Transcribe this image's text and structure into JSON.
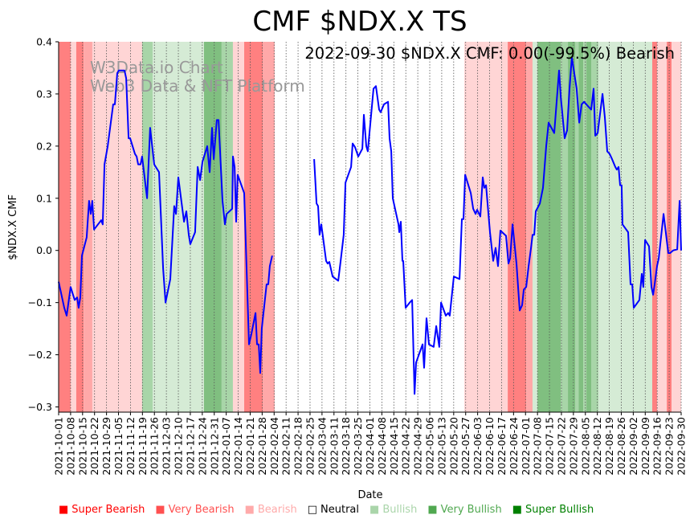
{
  "chart_data": {
    "type": "line",
    "title": "CMF $NDX.X TS",
    "annotation": "2022-09-30 $NDX.X CMF: 0.00(-99.5%) Bearish",
    "watermark": [
      "W3Data.io Chart",
      "Web3 Data & NFT Platform"
    ],
    "xlabel": "Date",
    "ylabel": "$NDX.X CMF",
    "x_start": "2021-10-01",
    "x_unit": "days since 2021-10-01",
    "xlim": [
      0,
      364
    ],
    "ylim": [
      -0.31,
      0.4
    ],
    "yticks": [
      -0.3,
      -0.2,
      -0.1,
      0.0,
      0.1,
      0.2,
      0.3,
      0.4
    ],
    "ytick_labels": [
      "−0.3",
      "−0.2",
      "−0.1",
      "0.0",
      "0.1",
      "0.2",
      "0.3",
      "0.4"
    ],
    "xtick_labels": [
      "2021-10-01",
      "2021-10-08",
      "2021-10-15",
      "2021-10-22",
      "2021-10-29",
      "2021-11-05",
      "2021-11-12",
      "2021-11-19",
      "2021-11-26",
      "2021-12-03",
      "2021-12-10",
      "2021-12-17",
      "2021-12-24",
      "2021-12-31",
      "2022-01-07",
      "2022-01-14",
      "2022-01-21",
      "2022-01-28",
      "2022-02-04",
      "2022-02-11",
      "2022-02-18",
      "2022-02-25",
      "2022-03-04",
      "2022-03-11",
      "2022-03-18",
      "2022-03-25",
      "2022-04-01",
      "2022-04-08",
      "2022-04-15",
      "2022-04-22",
      "2022-04-29",
      "2022-05-06",
      "2022-05-13",
      "2022-05-20",
      "2022-05-27",
      "2022-06-03",
      "2022-06-10",
      "2022-06-17",
      "2022-06-24",
      "2022-07-01",
      "2022-07-08",
      "2022-07-15",
      "2022-07-22",
      "2022-07-29",
      "2022-08-05",
      "2022-08-12",
      "2022-08-19",
      "2022-08-26",
      "2022-09-02",
      "2022-09-09",
      "2022-09-16",
      "2022-09-23",
      "2022-09-30"
    ],
    "grid": "x-dotted",
    "series": [
      {
        "name": "CMF",
        "color": "#0000ff",
        "points": [
          [
            0,
            -0.06
          ],
          [
            3.3,
            -0.11
          ],
          [
            4.7,
            -0.125
          ],
          [
            7,
            -0.07
          ],
          [
            9.4,
            -0.095
          ],
          [
            10.8,
            -0.09
          ],
          [
            11.7,
            -0.11
          ],
          [
            12.7,
            -0.09
          ],
          [
            13.6,
            -0.01
          ],
          [
            16.4,
            0.025
          ],
          [
            17.8,
            0.095
          ],
          [
            18.8,
            0.07
          ],
          [
            19.7,
            0.095
          ],
          [
            20.7,
            0.04
          ],
          [
            24.9,
            0.058
          ],
          [
            25.8,
            0.05
          ],
          [
            26.8,
            0.165
          ],
          [
            28.7,
            0.2
          ],
          [
            31.9,
            0.28
          ],
          [
            32.9,
            0.28
          ],
          [
            34.3,
            0.34
          ],
          [
            35.2,
            0.345
          ],
          [
            38.5,
            0.345
          ],
          [
            39.5,
            0.33
          ],
          [
            40.9,
            0.215
          ],
          [
            41.8,
            0.215
          ],
          [
            44.6,
            0.185
          ],
          [
            45.6,
            0.18
          ],
          [
            46.5,
            0.165
          ],
          [
            47.9,
            0.165
          ],
          [
            48.8,
            0.18
          ],
          [
            51.7,
            0.1
          ],
          [
            53.5,
            0.235
          ],
          [
            55.9,
            0.165
          ],
          [
            58.7,
            0.15
          ],
          [
            61.1,
            -0.035
          ],
          [
            62.5,
            -0.1
          ],
          [
            65.3,
            -0.055
          ],
          [
            67.6,
            0.085
          ],
          [
            68.6,
            0.07
          ],
          [
            70,
            0.14
          ],
          [
            73.3,
            0.055
          ],
          [
            74.7,
            0.075
          ],
          [
            76.1,
            0.03
          ],
          [
            77,
            0.012
          ],
          [
            79.8,
            0.035
          ],
          [
            81.3,
            0.16
          ],
          [
            82.7,
            0.135
          ],
          [
            84.1,
            0.17
          ],
          [
            86.9,
            0.2
          ],
          [
            88.3,
            0.15
          ],
          [
            89.7,
            0.235
          ],
          [
            90.7,
            0.175
          ],
          [
            92.5,
            0.25
          ],
          [
            93.5,
            0.25
          ],
          [
            95.8,
            0.095
          ],
          [
            97.2,
            0.05
          ],
          [
            98.2,
            0.07
          ],
          [
            101.5,
            0.08
          ],
          [
            101.9,
            0.18
          ],
          [
            102.9,
            0.16
          ],
          [
            103.8,
            0.055
          ],
          [
            104.7,
            0.145
          ],
          [
            108.5,
            0.11
          ],
          [
            111.3,
            -0.18
          ],
          [
            112.7,
            -0.16
          ],
          [
            115.1,
            -0.12
          ],
          [
            116,
            -0.18
          ],
          [
            117,
            -0.18
          ],
          [
            117.9,
            -0.235
          ],
          [
            118.8,
            -0.15
          ],
          [
            121.6,
            -0.065
          ],
          [
            122.6,
            -0.065
          ],
          [
            123.5,
            -0.03
          ],
          [
            124.9,
            -0.01
          ],
          null,
          [
            149.4,
            0.175
          ],
          [
            150.8,
            0.09
          ],
          [
            151.7,
            0.085
          ],
          [
            152.6,
            0.03
          ],
          [
            153.6,
            0.05
          ],
          [
            156.4,
            -0.02
          ],
          [
            157.3,
            -0.025
          ],
          [
            158.3,
            -0.022
          ],
          [
            160.2,
            -0.05
          ],
          [
            163.5,
            -0.058
          ],
          [
            164.9,
            -0.02
          ],
          [
            166.7,
            0.03
          ],
          [
            167.7,
            0.13
          ],
          [
            171,
            0.16
          ],
          [
            171.9,
            0.205
          ],
          [
            173.3,
            0.198
          ],
          [
            175.2,
            0.18
          ],
          [
            177.6,
            0.195
          ],
          [
            178.5,
            0.26
          ],
          [
            179.9,
            0.2
          ],
          [
            180.8,
            0.19
          ],
          [
            184.1,
            0.31
          ],
          [
            185.5,
            0.315
          ],
          [
            187.4,
            0.27
          ],
          [
            188.3,
            0.265
          ],
          [
            190.2,
            0.28
          ],
          [
            192.6,
            0.285
          ],
          [
            193.5,
            0.215
          ],
          [
            194.5,
            0.19
          ],
          [
            195.4,
            0.1
          ],
          [
            198.7,
            0.05
          ],
          [
            199.2,
            0.035
          ],
          [
            200.1,
            0.055
          ],
          [
            201,
            -0.02
          ],
          [
            201.5,
            -0.02
          ],
          [
            202.9,
            -0.11
          ],
          [
            205.3,
            -0.1
          ],
          [
            206.7,
            -0.095
          ],
          [
            208.1,
            -0.275
          ],
          [
            209,
            -0.215
          ],
          [
            212.8,
            -0.18
          ],
          [
            213.7,
            -0.225
          ],
          [
            215.1,
            -0.13
          ],
          [
            216.5,
            -0.18
          ],
          [
            219.3,
            -0.185
          ],
          [
            220.8,
            -0.145
          ],
          [
            222.6,
            -0.185
          ],
          [
            223.6,
            -0.1
          ],
          [
            226.4,
            -0.125
          ],
          [
            227.8,
            -0.12
          ],
          [
            228.7,
            -0.125
          ],
          [
            231.1,
            -0.05
          ],
          [
            234.4,
            -0.055
          ],
          [
            235.8,
            0.06
          ],
          [
            236.7,
            0.06
          ],
          [
            237.7,
            0.145
          ],
          [
            241,
            0.11
          ],
          [
            242.4,
            0.08
          ],
          [
            243.8,
            0.07
          ],
          [
            244.7,
            0.078
          ],
          [
            246.6,
            0.065
          ],
          [
            248,
            0.14
          ],
          [
            248.9,
            0.12
          ],
          [
            249.9,
            0.125
          ],
          [
            252.2,
            0.035
          ],
          [
            254.1,
            -0.02
          ],
          [
            255.5,
            0.005
          ],
          [
            256.9,
            -0.03
          ],
          [
            258.3,
            0.038
          ],
          [
            261.6,
            0.028
          ],
          [
            263,
            -0.025
          ],
          [
            264,
            -0.015
          ],
          [
            265.4,
            0.05
          ],
          [
            267.7,
            -0.025
          ],
          [
            269.6,
            -0.115
          ],
          [
            271,
            -0.105
          ],
          [
            272,
            -0.075
          ],
          [
            273.4,
            -0.07
          ],
          [
            274.8,
            -0.03
          ],
          [
            276.2,
            0.005
          ],
          [
            277.1,
            0.03
          ],
          [
            278.1,
            0.03
          ],
          [
            279,
            0.075
          ],
          [
            281.4,
            0.09
          ],
          [
            283.2,
            0.12
          ],
          [
            285.1,
            0.2
          ],
          [
            286.5,
            0.245
          ],
          [
            289.8,
            0.225
          ],
          [
            292.6,
            0.345
          ],
          [
            293.6,
            0.295
          ],
          [
            295.9,
            0.215
          ],
          [
            297.3,
            0.23
          ],
          [
            298.7,
            0.31
          ],
          [
            300.1,
            0.37
          ],
          [
            302.9,
            0.31
          ],
          [
            304.4,
            0.245
          ],
          [
            305.8,
            0.28
          ],
          [
            307.2,
            0.285
          ],
          [
            308.6,
            0.28
          ],
          [
            311.4,
            0.27
          ],
          [
            312.8,
            0.31
          ],
          [
            313.8,
            0.22
          ],
          [
            315.2,
            0.225
          ],
          [
            318,
            0.3
          ],
          [
            319.4,
            0.255
          ],
          [
            320.8,
            0.19
          ],
          [
            322.2,
            0.185
          ],
          [
            323.6,
            0.175
          ],
          [
            325.5,
            0.16
          ],
          [
            326.4,
            0.155
          ],
          [
            327.4,
            0.16
          ],
          [
            328.3,
            0.125
          ],
          [
            329.2,
            0.125
          ],
          [
            329.7,
            0.05
          ],
          [
            333,
            0.035
          ],
          [
            334.4,
            -0.065
          ],
          [
            335.4,
            -0.065
          ],
          [
            336.3,
            -0.11
          ],
          [
            339.6,
            -0.095
          ],
          [
            341,
            -0.045
          ],
          [
            341.9,
            -0.07
          ],
          [
            342.9,
            0.02
          ],
          [
            345.2,
            0.008
          ],
          [
            346.6,
            -0.07
          ],
          [
            347.6,
            -0.085
          ],
          [
            348.5,
            -0.065
          ],
          [
            349.9,
            -0.03
          ],
          [
            350.9,
            -0.015
          ],
          [
            353.7,
            0.07
          ],
          [
            356.5,
            -0.005
          ],
          [
            357.5,
            -0.005
          ],
          [
            359.3,
            0
          ],
          [
            361.7,
            0.002
          ],
          [
            363.1,
            0.095
          ],
          [
            364,
            0.0
          ]
        ]
      }
    ],
    "band_colors": {
      "SB": "#ff8080",
      "VB": "#ffa8a8",
      "B": "#ffd5d5",
      "Bu": "#d5ebd5",
      "VBu": "#a8d5a8",
      "SBu": "#80bf80"
    },
    "bands": [
      [
        0,
        7,
        "SB"
      ],
      [
        7,
        10.3,
        "B"
      ],
      [
        10.3,
        14.6,
        "SB"
      ],
      [
        14.6,
        19.7,
        "VB"
      ],
      [
        19.7,
        48.8,
        "B"
      ],
      [
        48.8,
        55,
        "VBu"
      ],
      [
        55,
        85,
        "Bu"
      ],
      [
        85,
        95.3,
        "SBu"
      ],
      [
        95.3,
        101.9,
        "VBu"
      ],
      [
        101.9,
        108.5,
        "B"
      ],
      [
        108.5,
        119.3,
        "SB"
      ],
      [
        119.3,
        126.3,
        "VB"
      ],
      [
        237.2,
        262.6,
        "B"
      ],
      [
        262.6,
        273.4,
        "SB"
      ],
      [
        273.4,
        277.1,
        "VB"
      ],
      [
        277.1,
        280,
        "Bu"
      ],
      [
        280,
        293.6,
        "SBu"
      ],
      [
        293.6,
        297.8,
        "VBu"
      ],
      [
        297.8,
        302,
        "SBu"
      ],
      [
        302,
        304,
        "VBu"
      ],
      [
        304,
        306.8,
        "SBu"
      ],
      [
        306.8,
        308.6,
        "VBu"
      ],
      [
        308.6,
        311.4,
        "SBu"
      ],
      [
        311.4,
        315.6,
        "VBu"
      ],
      [
        315.6,
        347.1,
        "Bu"
      ],
      [
        347.1,
        349.9,
        "SB"
      ],
      [
        349.9,
        355.6,
        "B"
      ],
      [
        355.6,
        358.4,
        "SB"
      ],
      [
        358.4,
        364,
        "B"
      ]
    ],
    "legend": [
      {
        "label": "Super Bearish",
        "color": "#ff0000",
        "swatch": "#ff0000"
      },
      {
        "label": "Very Bearish",
        "color": "#ff5050",
        "swatch": "#ff5050"
      },
      {
        "label": "Bearish",
        "color": "#ffaaaa",
        "swatch": "#ffaaaa"
      },
      {
        "label": "Neutral",
        "color": "#000000",
        "swatch": "none"
      },
      {
        "label": "Bullish",
        "color": "#aad5aa",
        "swatch": "#aad5aa"
      },
      {
        "label": "Very Bullish",
        "color": "#50a850",
        "swatch": "#50a850"
      },
      {
        "label": "Super Bullish",
        "color": "#008000",
        "swatch": "#008000"
      }
    ],
    "legend_placement": "bottom"
  }
}
